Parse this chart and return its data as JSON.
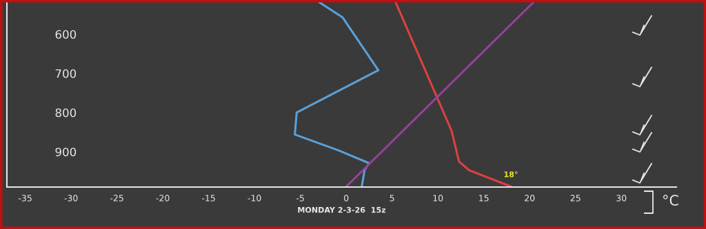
{
  "chart_data": {
    "type": "line",
    "xlabel": "MONDAY 2-3-26  15z",
    "xlim": [
      -37,
      36
    ],
    "xticks": [
      -35,
      -30,
      -25,
      -20,
      -15,
      -10,
      -5,
      0,
      5,
      10,
      15,
      20,
      25,
      30
    ],
    "ylim": [
      990,
      518
    ],
    "yticks": [
      600,
      700,
      800,
      900
    ],
    "grid": false,
    "legend": false,
    "marker": "none",
    "line_style": "solid",
    "series": [
      {
        "color": "#e04040",
        "x": [
          5.4,
          11.5,
          12.3,
          13.4,
          18
        ],
        "values": [
          519,
          847,
          925,
          947,
          989
        ]
      },
      {
        "color": "#5aa0d8",
        "x": [
          -2.9,
          -0.4,
          3.5,
          -5.4,
          -5.6,
          -0.9,
          2.5,
          2.0,
          1.7
        ],
        "values": [
          519,
          557,
          692,
          800,
          856,
          896,
          929,
          947,
          989
        ]
      },
      {
        "color": "#9a3f9a",
        "x": [
          0,
          20.4
        ],
        "values": [
          989,
          519
        ]
      }
    ],
    "annotations": [
      {
        "text": "18°",
        "x": 18,
        "y": 989
      },
      "°C"
    ]
  }
}
